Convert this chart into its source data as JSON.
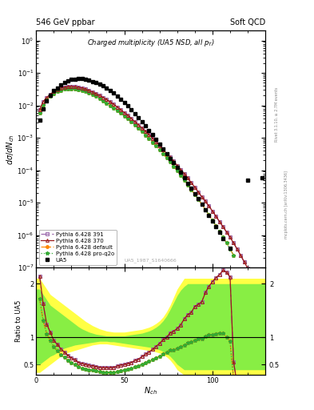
{
  "title_top_left": "546 GeV ppbar",
  "title_top_right": "Soft QCD",
  "plot_title": "Charged multiplicity (UA5 NSD, all p_{T})",
  "ylabel_main": "dσ/dN_{ch}",
  "xlabel": "N_{ch}",
  "ylabel_ratio": "Ratio to UA5",
  "watermark": "UA5_1987_S1640666",
  "right_label1": "Rivet 3.1.10, ≥ 2.7M events",
  "right_label2": "mcplots.cern.ch [arXiv:1306.3436]",
  "xlim": [
    0,
    130
  ],
  "ylim_main_lo": 1e-07,
  "ylim_main_hi": 2.0,
  "ylim_ratio_lo": 0.3,
  "ylim_ratio_hi": 2.3,
  "ua5_x": [
    2,
    4,
    6,
    8,
    10,
    12,
    14,
    16,
    18,
    20,
    22,
    24,
    26,
    28,
    30,
    32,
    34,
    36,
    38,
    40,
    42,
    44,
    46,
    48,
    50,
    52,
    54,
    56,
    58,
    60,
    62,
    64,
    66,
    68,
    70,
    72,
    74,
    76,
    78,
    80,
    82,
    84,
    86,
    88,
    90,
    92,
    94,
    96,
    98,
    100,
    102,
    104,
    106,
    110,
    120,
    128
  ],
  "ua5_y": [
    0.0035,
    0.008,
    0.014,
    0.02,
    0.028,
    0.035,
    0.043,
    0.05,
    0.057,
    0.062,
    0.065,
    0.068,
    0.067,
    0.064,
    0.06,
    0.055,
    0.05,
    0.045,
    0.04,
    0.034,
    0.029,
    0.024,
    0.019,
    0.015,
    0.012,
    0.0095,
    0.0073,
    0.0055,
    0.0042,
    0.0031,
    0.0023,
    0.0017,
    0.00125,
    0.0009,
    0.00065,
    0.00046,
    0.00033,
    0.00023,
    0.00017,
    0.00012,
    8.5e-05,
    5.8e-05,
    4e-05,
    2.8e-05,
    1.9e-05,
    1.3e-05,
    9e-06,
    6e-06,
    4e-06,
    2.7e-06,
    1.8e-06,
    1.2e-06,
    8e-07,
    4e-07,
    5e-05,
    6e-05
  ],
  "p370_x": [
    2,
    4,
    6,
    8,
    10,
    12,
    14,
    16,
    18,
    20,
    22,
    24,
    26,
    28,
    30,
    32,
    34,
    36,
    38,
    40,
    42,
    44,
    46,
    48,
    50,
    52,
    54,
    56,
    58,
    60,
    62,
    64,
    66,
    68,
    70,
    72,
    74,
    76,
    78,
    80,
    82,
    84,
    86,
    88,
    90,
    92,
    94,
    96,
    98,
    100,
    102,
    104,
    106,
    108,
    110,
    112,
    114,
    116,
    118,
    120,
    122,
    124,
    126,
    128,
    130
  ],
  "p370_y": [
    0.0075,
    0.013,
    0.0175,
    0.022,
    0.0265,
    0.0305,
    0.034,
    0.0365,
    0.038,
    0.0385,
    0.038,
    0.0365,
    0.0345,
    0.032,
    0.029,
    0.026,
    0.023,
    0.02,
    0.0175,
    0.015,
    0.0127,
    0.0107,
    0.0089,
    0.0073,
    0.006,
    0.0049,
    0.0039,
    0.00315,
    0.0025,
    0.002,
    0.00158,
    0.00124,
    0.00097,
    0.00075,
    0.00058,
    0.00044,
    0.00033,
    0.00025,
    0.00019,
    0.00014,
    0.000105,
    7.8e-05,
    5.7e-05,
    4.1e-05,
    3e-05,
    2.1e-05,
    1.5e-05,
    1.1e-05,
    7.8e-06,
    5.5e-06,
    3.8e-06,
    2.6e-06,
    1.8e-06,
    1.25e-06,
    8.5e-07,
    5.7e-07,
    3.7e-07,
    2.4e-07,
    1.5e-07,
    9.5e-08,
    5.8e-08,
    3.5e-08,
    2e-08,
    1.2e-08,
    6e-09
  ],
  "p391_x": [
    2,
    4,
    6,
    8,
    10,
    12,
    14,
    16,
    18,
    20,
    22,
    24,
    26,
    28,
    30,
    32,
    34,
    36,
    38,
    40,
    42,
    44,
    46,
    48,
    50,
    52,
    54,
    56,
    58,
    60,
    62,
    64,
    66,
    68,
    70,
    72,
    74,
    76,
    78,
    80,
    82,
    84,
    86,
    88,
    90,
    92,
    94,
    96,
    98,
    100,
    102,
    104,
    106,
    108,
    110,
    112,
    114,
    116,
    118,
    120,
    122,
    124,
    126,
    128,
    130
  ],
  "p391_y": [
    0.0075,
    0.013,
    0.0175,
    0.022,
    0.0265,
    0.0305,
    0.034,
    0.0365,
    0.038,
    0.0385,
    0.038,
    0.0365,
    0.0345,
    0.032,
    0.029,
    0.026,
    0.023,
    0.02,
    0.0175,
    0.015,
    0.0127,
    0.0107,
    0.0089,
    0.0073,
    0.006,
    0.0049,
    0.0039,
    0.00315,
    0.0025,
    0.002,
    0.00158,
    0.00124,
    0.00097,
    0.00075,
    0.00058,
    0.00044,
    0.00033,
    0.00025,
    0.00019,
    0.00014,
    0.000105,
    7.8e-05,
    5.7e-05,
    4.1e-05,
    3e-05,
    2.1e-05,
    1.5e-05,
    1.1e-05,
    7.8e-06,
    5.5e-06,
    3.8e-06,
    2.6e-06,
    1.8e-06,
    1.25e-06,
    8.5e-07,
    5.7e-07,
    3.7e-07,
    2.4e-07,
    1.5e-07,
    9.5e-08,
    5.8e-08,
    3.5e-08,
    2e-08,
    1.2e-08,
    6e-09
  ],
  "pdef_x": [
    2,
    4,
    6,
    8,
    10,
    12,
    14,
    16,
    18,
    20,
    22,
    24,
    26,
    28,
    30,
    32,
    34,
    36,
    38,
    40,
    42,
    44,
    46,
    48,
    50,
    52,
    54,
    56,
    58,
    60,
    62,
    64,
    66,
    68,
    70,
    72,
    74,
    76,
    78,
    80,
    82,
    84,
    86,
    88,
    90,
    92,
    94,
    96,
    98,
    100,
    102,
    104,
    106,
    108,
    110,
    112
  ],
  "pdef_y": [
    0.006,
    0.0105,
    0.015,
    0.019,
    0.023,
    0.0265,
    0.0295,
    0.0315,
    0.0328,
    0.033,
    0.0322,
    0.0308,
    0.0288,
    0.0265,
    0.024,
    0.0214,
    0.0188,
    0.0163,
    0.014,
    0.0119,
    0.01,
    0.0084,
    0.007,
    0.0058,
    0.00475,
    0.00385,
    0.0031,
    0.00248,
    0.00197,
    0.00156,
    0.00122,
    0.00095,
    0.00073,
    0.00056,
    0.000425,
    0.00032,
    0.00024,
    0.000178,
    0.000131,
    9.6e-05,
    7e-05,
    5e-05,
    3.6e-05,
    2.55e-05,
    1.8e-05,
    1.27e-05,
    8.8e-06,
    6.1e-06,
    4.2e-06,
    2.85e-06,
    1.93e-06,
    1.3e-06,
    8.7e-07,
    5.7e-07,
    3.7e-07,
    2.4e-07
  ],
  "pproq2o_x": [
    2,
    4,
    6,
    8,
    10,
    12,
    14,
    16,
    18,
    20,
    22,
    24,
    26,
    28,
    30,
    32,
    34,
    36,
    38,
    40,
    42,
    44,
    46,
    48,
    50,
    52,
    54,
    56,
    58,
    60,
    62,
    64,
    66,
    68,
    70,
    72,
    74,
    76,
    78,
    80,
    82,
    84,
    86,
    88,
    90,
    92,
    94,
    96,
    98,
    100,
    102,
    104,
    106,
    108,
    110,
    112
  ],
  "pproq2o_y": [
    0.006,
    0.0105,
    0.015,
    0.019,
    0.023,
    0.0265,
    0.0295,
    0.0315,
    0.0328,
    0.033,
    0.0322,
    0.0308,
    0.0288,
    0.0265,
    0.024,
    0.0214,
    0.0188,
    0.0163,
    0.014,
    0.0119,
    0.01,
    0.0084,
    0.007,
    0.0058,
    0.00475,
    0.00385,
    0.0031,
    0.00248,
    0.00197,
    0.00156,
    0.00122,
    0.00095,
    0.00073,
    0.00056,
    0.000425,
    0.00032,
    0.00024,
    0.000178,
    0.000131,
    9.6e-05,
    7e-05,
    5e-05,
    3.6e-05,
    2.55e-05,
    1.8e-05,
    1.27e-05,
    8.8e-06,
    6.1e-06,
    4.2e-06,
    2.85e-06,
    1.93e-06,
    1.3e-06,
    8.7e-07,
    5.7e-07,
    3.7e-07,
    2.4e-07
  ],
  "color_ua5": "#000000",
  "color_p370": "#9b1a1a",
  "color_p391": "#9966aa",
  "color_pdef": "#ff8800",
  "color_pproq2o": "#33aa33",
  "band_x": [
    0,
    2,
    4,
    6,
    8,
    10,
    12,
    14,
    16,
    18,
    20,
    22,
    24,
    26,
    28,
    30,
    32,
    34,
    36,
    38,
    40,
    42,
    44,
    46,
    48,
    50,
    52,
    54,
    56,
    58,
    60,
    62,
    64,
    66,
    68,
    70,
    72,
    74,
    76,
    78,
    80,
    82,
    84,
    86,
    88,
    90,
    92,
    94,
    96,
    98,
    100,
    102,
    104,
    106,
    108,
    110,
    112,
    114,
    116,
    118,
    120,
    122,
    124,
    126,
    128,
    130
  ],
  "yellow_lo": [
    0.35,
    0.35,
    0.4,
    0.45,
    0.5,
    0.55,
    0.6,
    0.65,
    0.7,
    0.72,
    0.74,
    0.76,
    0.78,
    0.8,
    0.82,
    0.84,
    0.86,
    0.87,
    0.88,
    0.88,
    0.88,
    0.87,
    0.86,
    0.85,
    0.84,
    0.83,
    0.82,
    0.81,
    0.8,
    0.79,
    0.78,
    0.77,
    0.76,
    0.75,
    0.73,
    0.71,
    0.68,
    0.64,
    0.58,
    0.5,
    0.4,
    0.35,
    0.3,
    0.3,
    0.3,
    0.3,
    0.3,
    0.3,
    0.3,
    0.3,
    0.3,
    0.3,
    0.3,
    0.3,
    0.3,
    0.3,
    0.3,
    0.3,
    0.3,
    0.3,
    0.3,
    0.3,
    0.3,
    0.3,
    0.3,
    0.3
  ],
  "yellow_hi": [
    2.1,
    2.1,
    2.0,
    1.9,
    1.8,
    1.75,
    1.7,
    1.65,
    1.6,
    1.55,
    1.5,
    1.45,
    1.4,
    1.35,
    1.3,
    1.26,
    1.22,
    1.19,
    1.16,
    1.14,
    1.12,
    1.11,
    1.1,
    1.1,
    1.1,
    1.1,
    1.11,
    1.12,
    1.13,
    1.14,
    1.15,
    1.17,
    1.19,
    1.22,
    1.26,
    1.31,
    1.38,
    1.48,
    1.6,
    1.75,
    1.9,
    2.0,
    2.1,
    2.1,
    2.1,
    2.1,
    2.1,
    2.1,
    2.1,
    2.1,
    2.1,
    2.1,
    2.1,
    2.1,
    2.1,
    2.1,
    2.1,
    2.1,
    2.1,
    2.1,
    2.1,
    2.1,
    2.1,
    2.1,
    2.1,
    2.1
  ],
  "green_lo": [
    0.5,
    0.5,
    0.55,
    0.6,
    0.65,
    0.68,
    0.72,
    0.76,
    0.8,
    0.82,
    0.84,
    0.86,
    0.87,
    0.88,
    0.89,
    0.9,
    0.91,
    0.92,
    0.93,
    0.93,
    0.93,
    0.92,
    0.92,
    0.91,
    0.9,
    0.89,
    0.88,
    0.87,
    0.86,
    0.85,
    0.84,
    0.83,
    0.82,
    0.81,
    0.79,
    0.77,
    0.74,
    0.7,
    0.65,
    0.58,
    0.5,
    0.45,
    0.4,
    0.4,
    0.4,
    0.4,
    0.4,
    0.4,
    0.4,
    0.4,
    0.4,
    0.4,
    0.4,
    0.4,
    0.4,
    0.4,
    0.4,
    0.4,
    0.4,
    0.4,
    0.4,
    0.4,
    0.4,
    0.4,
    0.4,
    0.4
  ],
  "green_hi": [
    1.9,
    1.9,
    1.8,
    1.7,
    1.6,
    1.55,
    1.5,
    1.45,
    1.4,
    1.35,
    1.3,
    1.25,
    1.2,
    1.16,
    1.13,
    1.1,
    1.08,
    1.06,
    1.05,
    1.04,
    1.03,
    1.03,
    1.03,
    1.03,
    1.03,
    1.03,
    1.04,
    1.05,
    1.06,
    1.07,
    1.08,
    1.1,
    1.12,
    1.15,
    1.19,
    1.24,
    1.31,
    1.4,
    1.52,
    1.65,
    1.78,
    1.88,
    1.95,
    2.0,
    2.0,
    2.0,
    2.0,
    2.0,
    2.0,
    2.0,
    2.0,
    2.0,
    2.0,
    2.0,
    2.0,
    2.0,
    2.0,
    2.0,
    2.0,
    2.0,
    2.0,
    2.0,
    2.0,
    2.0,
    2.0,
    2.0
  ]
}
